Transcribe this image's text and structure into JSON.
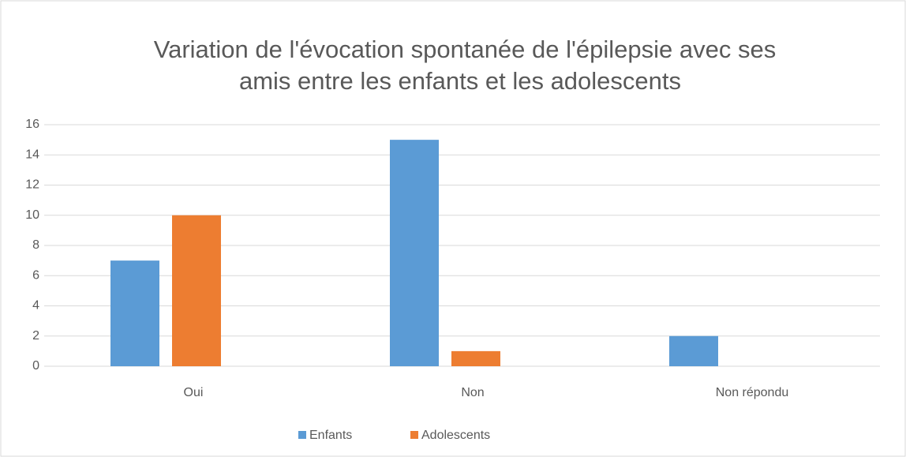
{
  "chart_data": {
    "type": "bar",
    "title": [
      "Variation de l'évocation spontanée de l'épilepsie avec ses",
      "amis entre les enfants et les adolescents"
    ],
    "categories": [
      "Oui",
      "Non",
      "Non répondu"
    ],
    "series": [
      {
        "name": "Enfants",
        "color": "#5b9bd5",
        "values": [
          7,
          15,
          2
        ]
      },
      {
        "name": "Adolescents",
        "color": "#ed7d31",
        "values": [
          10,
          1,
          0
        ]
      }
    ],
    "ylim": [
      0,
      16
    ],
    "yticks": [
      0,
      2,
      4,
      6,
      8,
      10,
      12,
      14,
      16
    ],
    "grid": true,
    "legend": "bottom"
  }
}
